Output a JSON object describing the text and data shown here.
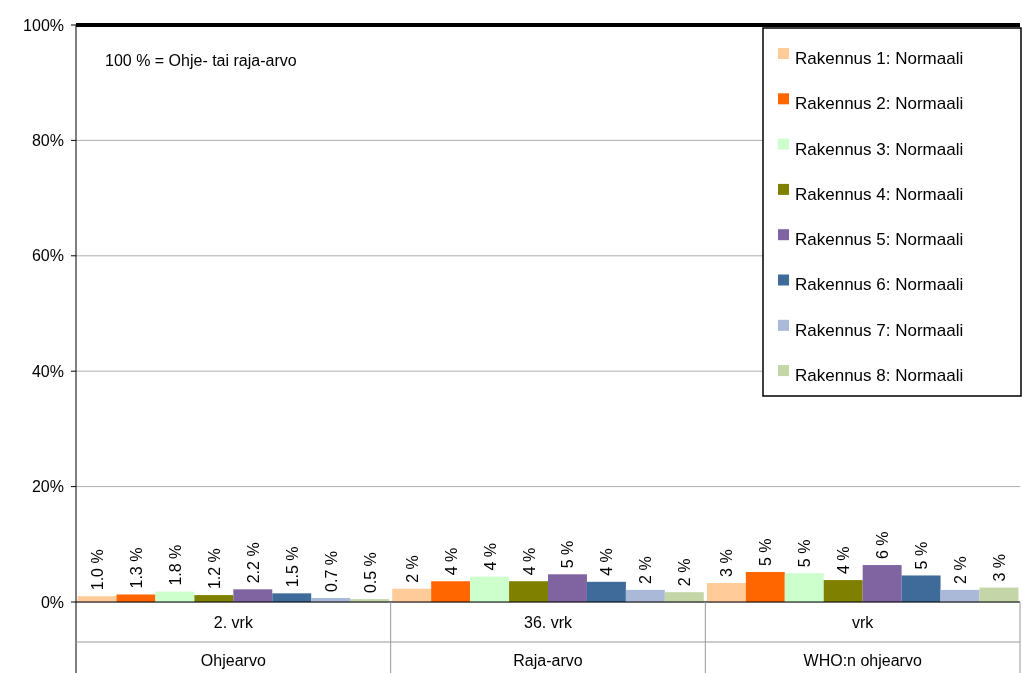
{
  "chart_data": {
    "type": "bar",
    "categories": [
      "2. vrk",
      "36. vrk",
      "vrk"
    ],
    "series": [
      {
        "name": "Rakennus 1: Normaali",
        "color": "#ffcc99",
        "values": [
          1.0,
          2.3,
          3.3
        ],
        "value_labels": [
          "1.0 %",
          "2 %",
          "3 %"
        ]
      },
      {
        "name": "Rakennus 2: Normaali",
        "color": "#ff6600",
        "values": [
          1.3,
          3.6,
          5.2
        ],
        "value_labels": [
          "1.3 %",
          "4 %",
          "5 %"
        ]
      },
      {
        "name": "Rakennus 3: Normaali",
        "color": "#ccffcc",
        "values": [
          1.8,
          4.4,
          5.0
        ],
        "value_labels": [
          "1.8 %",
          "4 %",
          "5 %"
        ]
      },
      {
        "name": "Rakennus 4: Normaali",
        "color": "#808000",
        "values": [
          1.2,
          3.6,
          3.8
        ],
        "value_labels": [
          "1.2 %",
          "4 %",
          "4 %"
        ]
      },
      {
        "name": "Rakennus 5: Normaali",
        "color": "#8064a2",
        "values": [
          2.2,
          4.8,
          6.4
        ],
        "value_labels": [
          "2.2 %",
          "5 %",
          "6 %"
        ]
      },
      {
        "name": "Rakennus 6: Normaali",
        "color": "#3f6b9a",
        "values": [
          1.5,
          3.5,
          4.6
        ],
        "value_labels": [
          "1.5 %",
          "4 %",
          "5 %"
        ]
      },
      {
        "name": "Rakennus 7: Normaali",
        "color": "#aab9d8",
        "values": [
          0.7,
          2.1,
          2.1
        ],
        "value_labels": [
          "0.7 %",
          "2 %",
          "2 %"
        ]
      },
      {
        "name": "Rakennus 8: Normaali",
        "color": "#c4d6a8",
        "values": [
          0.5,
          1.7,
          2.5
        ],
        "value_labels": [
          "0.5 %",
          "2 %",
          "3 %"
        ]
      }
    ],
    "ylim": [
      0,
      100
    ],
    "yticks": [
      {
        "value": 0,
        "label": "0%"
      },
      {
        "value": 20,
        "label": "20%"
      },
      {
        "value": 40,
        "label": "40%"
      },
      {
        "value": 60,
        "label": "60%"
      },
      {
        "value": 80,
        "label": "80%"
      },
      {
        "value": 100,
        "label": "100%"
      }
    ],
    "grid": "y",
    "legend": "top right",
    "annotations": [
      "100 % = Ohje- tai raja-arvo",
      "Ohjearvo",
      "Raja-arvo",
      "WHO:n ohjearvo"
    ]
  }
}
